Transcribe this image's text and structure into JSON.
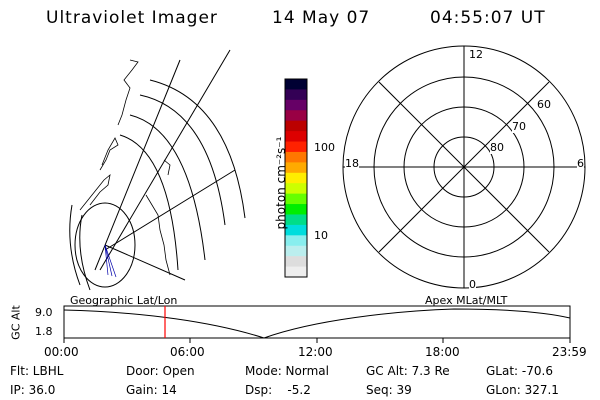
{
  "header": {
    "title": "Ultraviolet Imager",
    "date": "14 May 07",
    "time": "04:55:07 UT"
  },
  "colorbar": {
    "label": "photon cm⁻²s⁻¹",
    "ticks": [
      "100",
      "10"
    ],
    "colors": [
      "#000033",
      "#330055",
      "#660066",
      "#990044",
      "#bb0000",
      "#dd0000",
      "#ff2200",
      "#ff7700",
      "#ffaa00",
      "#ffee00",
      "#ccff00",
      "#66ff00",
      "#00ee00",
      "#00dd88",
      "#00dddd",
      "#88eeee",
      "#bbeeee",
      "#dddddd",
      "#eeeeee"
    ]
  },
  "polar_plot": {
    "mlt_labels": {
      "top": "12",
      "left": "18",
      "right": "6",
      "bottom": "0"
    },
    "lat_labels": [
      "60",
      "70",
      "80"
    ]
  },
  "orbit_panel": {
    "left_label": "Geographic Lat/Lon",
    "right_label": "Apex MLat/MLT",
    "y_axis_title": "GC Alt",
    "y_ticks": [
      "9.0",
      "1.8"
    ],
    "x_ticks": [
      "00:00",
      "06:00",
      "12:00",
      "18:00",
      "23:59"
    ],
    "current_time_marker_color": "#ff0000"
  },
  "status": {
    "filter": "Flt: LBHL",
    "ip": "IP: 36.0",
    "door": "Door: Open",
    "gain": "Gain: 14",
    "mode": "Mode: Normal",
    "dsp": "Dsp:    -5.2",
    "gc_alt": "GC Alt: 7.3 Re",
    "seq": "Seq: 39",
    "glat": "GLat: -70.6",
    "glon": "GLon: 327.1"
  }
}
